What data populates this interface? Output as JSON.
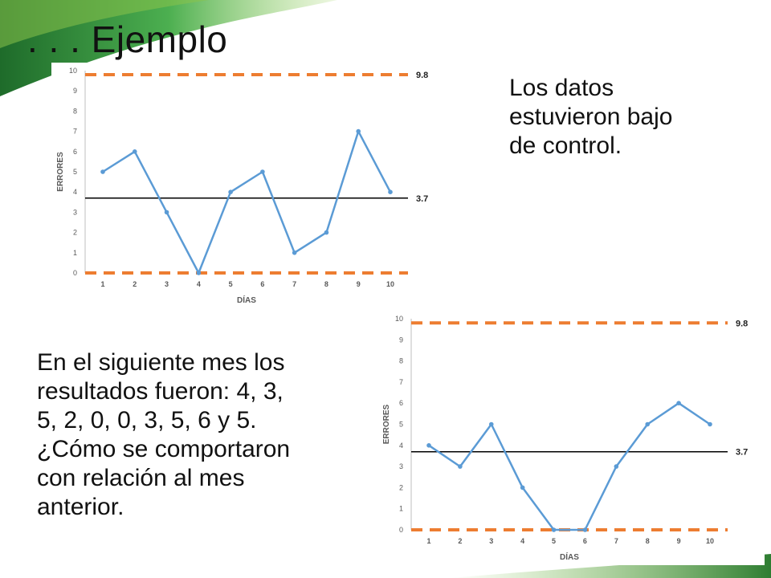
{
  "slide": {
    "title": ". . . Ejemplo",
    "text_top_right": "Los datos\nestuvieron bajo\nde control.",
    "text_bottom_left": "En el siguiente mes los\nresultados fueron: 4, 3,\n5, 2, 0, 0, 3, 5, 6 y 5.\n¿Cómo se comportaron\ncon relación al mes\nanterior.",
    "colors": {
      "green_dark": "#2e7d32",
      "green_light": "#7dc242",
      "series": "#5b9bd5",
      "limit": "#ed7d31",
      "center": "#000000"
    }
  },
  "chart_data": [
    {
      "type": "line",
      "x": [
        1,
        2,
        3,
        4,
        5,
        6,
        7,
        8,
        9,
        10
      ],
      "series": [
        {
          "values": [
            5,
            6,
            3,
            0,
            4,
            5,
            1,
            2,
            7,
            4
          ]
        }
      ],
      "xlabel": "DÍAS",
      "ylabel": "ERRORES",
      "ylim": [
        0,
        10
      ],
      "yticks": [
        0,
        1,
        2,
        3,
        4,
        5,
        6,
        7,
        8,
        9,
        10
      ],
      "reference_lines": [
        {
          "value": 9.8,
          "label": "9.8",
          "style": "dashed",
          "color": "#ed7d31"
        },
        {
          "value": 3.7,
          "label": "3.7",
          "style": "solid",
          "color": "#000000"
        },
        {
          "value": 0,
          "label": "",
          "style": "dashed",
          "color": "#ed7d31"
        }
      ],
      "grid": false
    },
    {
      "type": "line",
      "x": [
        1,
        2,
        3,
        4,
        5,
        6,
        7,
        8,
        9,
        10
      ],
      "series": [
        {
          "values": [
            4,
            3,
            5,
            2,
            0,
            0,
            3,
            5,
            6,
            5
          ]
        }
      ],
      "xlabel": "DÍAS",
      "ylabel": "ERRORES",
      "ylim": [
        0,
        10
      ],
      "yticks": [
        0,
        1,
        2,
        3,
        4,
        5,
        6,
        7,
        8,
        9,
        10
      ],
      "reference_lines": [
        {
          "value": 9.8,
          "label": "9.8",
          "style": "dashed",
          "color": "#ed7d31"
        },
        {
          "value": 3.7,
          "label": "3.7",
          "style": "solid",
          "color": "#000000"
        },
        {
          "value": 0,
          "label": "",
          "style": "dashed",
          "color": "#ed7d31"
        }
      ],
      "grid": false
    }
  ]
}
